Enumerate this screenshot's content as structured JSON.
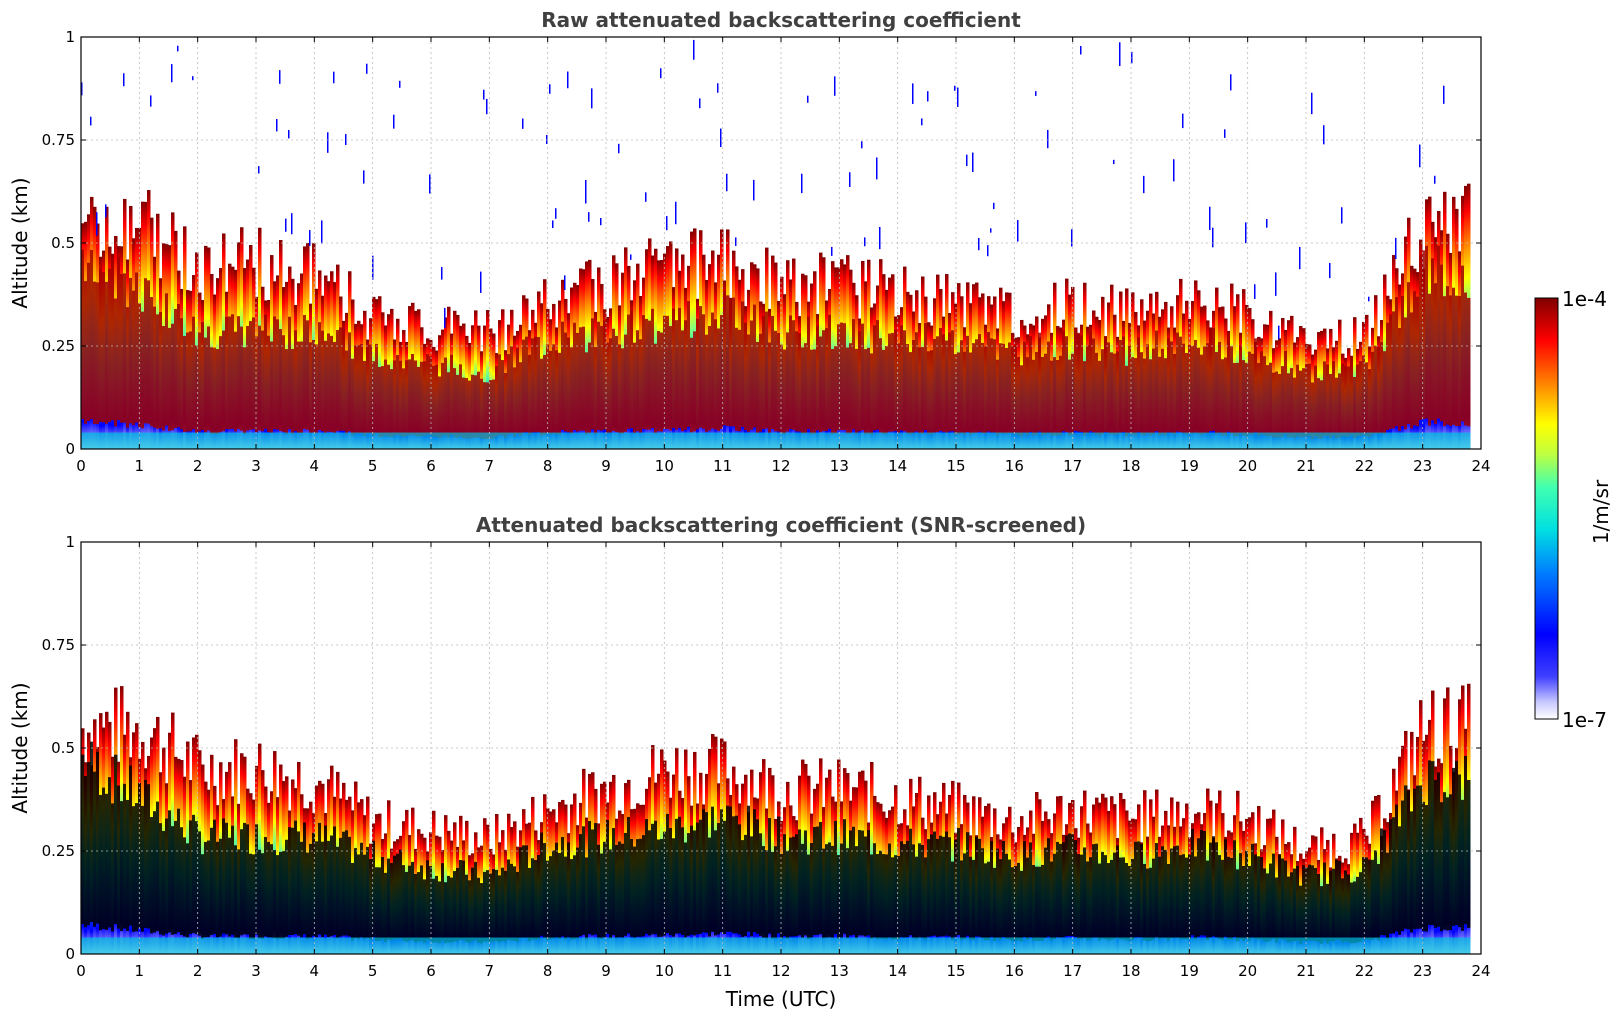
{
  "chart_data": [
    {
      "type": "heatmap",
      "title": "Raw attenuated backscattering coefficient",
      "xlabel": "",
      "ylabel": "Altitude (km)",
      "xlim": [
        0,
        24
      ],
      "ylim": [
        0,
        1
      ],
      "xticks": [
        "0",
        "1",
        "2",
        "3",
        "4",
        "5",
        "6",
        "7",
        "8",
        "9",
        "10",
        "11",
        "12",
        "13",
        "14",
        "15",
        "16",
        "17",
        "18",
        "19",
        "20",
        "21",
        "22",
        "23",
        "24"
      ],
      "yticks": [
        "0",
        "0.25",
        "0.5",
        "0.75",
        "1"
      ],
      "grid": true,
      "colormap": "jet",
      "color_scale": "log",
      "layer_profile": {
        "hour": [
          0,
          1,
          2,
          3,
          4,
          5,
          6,
          7,
          8,
          9,
          10,
          11,
          12,
          13,
          14,
          15,
          16,
          17,
          18,
          19,
          20,
          21,
          22,
          23,
          23.8
        ],
        "layer_top_km": [
          0.55,
          0.55,
          0.45,
          0.45,
          0.42,
          0.32,
          0.3,
          0.28,
          0.35,
          0.4,
          0.45,
          0.45,
          0.4,
          0.4,
          0.38,
          0.35,
          0.32,
          0.35,
          0.33,
          0.35,
          0.33,
          0.25,
          0.28,
          0.55,
          0.55
        ],
        "core_top_km": [
          0.5,
          0.4,
          0.3,
          0.3,
          0.3,
          0.25,
          0.22,
          0.2,
          0.28,
          0.3,
          0.32,
          0.35,
          0.3,
          0.3,
          0.28,
          0.28,
          0.25,
          0.27,
          0.25,
          0.28,
          0.25,
          0.2,
          0.22,
          0.45,
          0.45
        ]
      }
    },
    {
      "type": "heatmap",
      "title": "Attenuated backscattering coefficient (SNR-screened)",
      "xlabel": "Time (UTC)",
      "ylabel": "Altitude (km)",
      "xlim": [
        0,
        24
      ],
      "ylim": [
        0,
        1
      ],
      "xticks": [
        "0",
        "1",
        "2",
        "3",
        "4",
        "5",
        "6",
        "7",
        "8",
        "9",
        "10",
        "11",
        "12",
        "13",
        "14",
        "15",
        "16",
        "17",
        "18",
        "19",
        "20",
        "21",
        "22",
        "23",
        "24"
      ],
      "yticks": [
        "0",
        "0.25",
        "0.5",
        "0.75",
        "1"
      ],
      "grid": true,
      "colormap": "jet",
      "color_scale": "log",
      "screened_fill_color": "#000000"
    }
  ],
  "colorbar": {
    "label": "1/m/sr",
    "max_label": "1e-4",
    "min_label": "1e-7"
  }
}
